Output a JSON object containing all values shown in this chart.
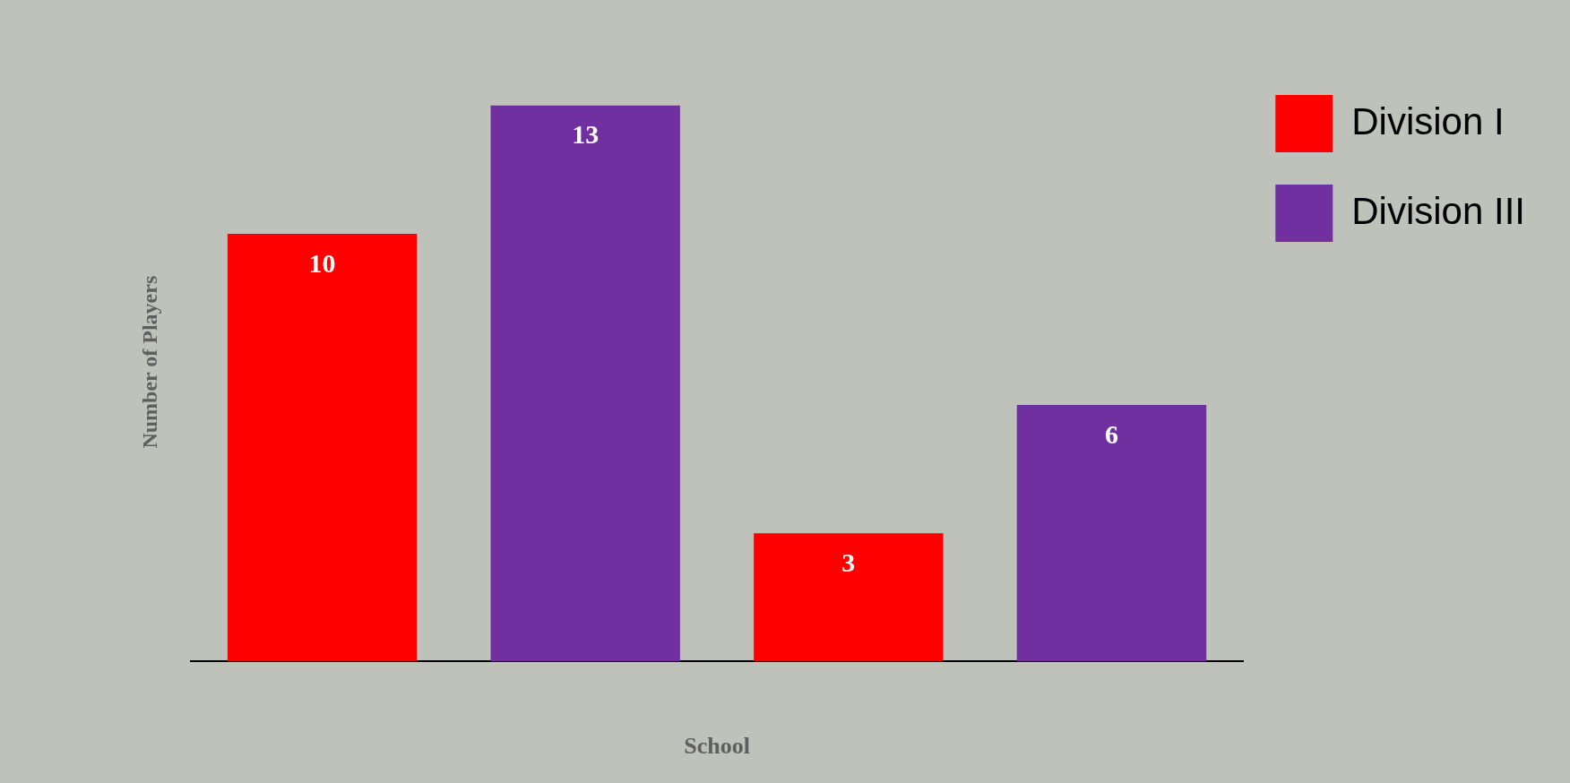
{
  "chart_data": {
    "type": "bar",
    "xlabel": "School",
    "ylabel": "Number of Players",
    "categories": [
      null,
      null,
      null,
      null
    ],
    "series": [
      {
        "name": "Division I",
        "color": "#ff0000",
        "values": [
          10,
          null,
          3,
          null
        ]
      },
      {
        "name": "Division III",
        "color": "#7030a0",
        "values": [
          null,
          13,
          null,
          6
        ]
      }
    ],
    "stacked": true,
    "data_labels": true,
    "legend": "right",
    "grid": false
  }
}
